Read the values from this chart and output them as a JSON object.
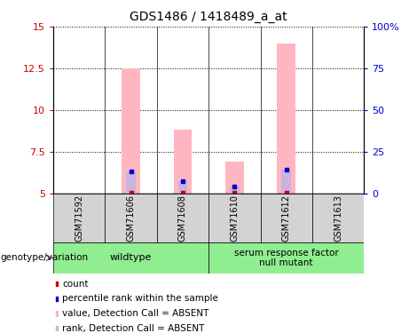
{
  "title": "GDS1486 / 1418489_a_at",
  "samples": [
    "GSM71592",
    "GSM71606",
    "GSM71608",
    "GSM71610",
    "GSM71612",
    "GSM71613"
  ],
  "value_bars": [
    null,
    12.5,
    8.8,
    6.9,
    14.0,
    null
  ],
  "rank_bars": [
    null,
    6.3,
    5.7,
    5.4,
    6.4,
    null
  ],
  "red_markers": [
    null,
    5.05,
    5.05,
    5.05,
    5.05,
    null
  ],
  "blue_markers": [
    null,
    6.3,
    5.7,
    5.4,
    6.4,
    null
  ],
  "ylim_left": [
    5,
    15
  ],
  "ylim_right": [
    0,
    100
  ],
  "yticks_left": [
    5,
    7.5,
    10,
    12.5,
    15
  ],
  "yticks_right": [
    0,
    25,
    50,
    75,
    100
  ],
  "ytick_labels_left": [
    "5",
    "7.5",
    "10",
    "12.5",
    "15"
  ],
  "ytick_labels_right": [
    "0",
    "25",
    "50",
    "75",
    "100%"
  ],
  "color_value_bar": "#ffb6c1",
  "color_rank_bar": "#c8b4e0",
  "color_red": "#cc0000",
  "color_blue": "#0000cc",
  "color_sample_box": "#d3d3d3",
  "color_genotype_box": "#90ee90",
  "wildtype_indices": [
    0,
    1,
    2
  ],
  "mutant_indices": [
    3,
    4,
    5
  ],
  "wildtype_label": "wildtype",
  "mutant_label": "serum response factor\nnull mutant",
  "genotype_label": "genotype/variation",
  "legend_items": [
    {
      "label": "count",
      "color": "#cc0000"
    },
    {
      "label": "percentile rank within the sample",
      "color": "#0000cc"
    },
    {
      "label": "value, Detection Call = ABSENT",
      "color": "#ffb6c1"
    },
    {
      "label": "rank, Detection Call = ABSENT",
      "color": "#c8b4e0"
    }
  ],
  "bar_width": 0.35,
  "rank_bar_width": 0.18,
  "axis_left_color": "#cc0000",
  "axis_right_color": "#0000cc"
}
